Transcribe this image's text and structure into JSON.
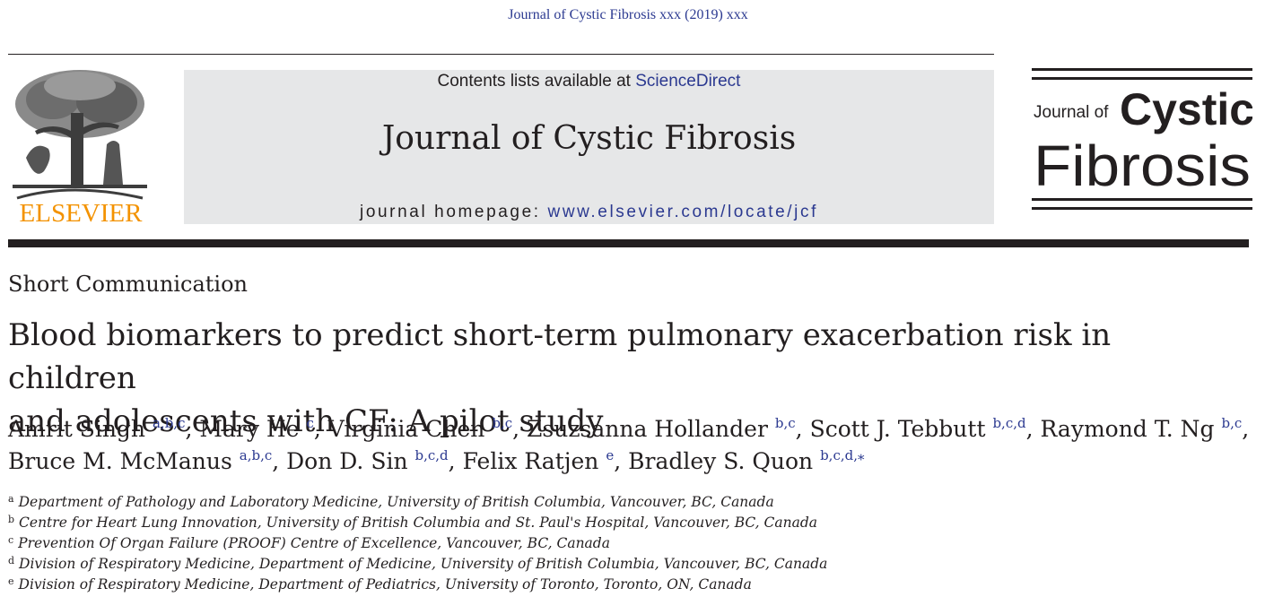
{
  "header": {
    "running_head": "Journal of Cystic Fibrosis xxx (2019) xxx",
    "contents_prefix": "Contents lists available at ",
    "contents_link": "ScienceDirect",
    "journal_title": "Journal of Cystic Fibrosis",
    "homepage_prefix": "journal homepage: ",
    "homepage_url": "www.elsevier.com/locate/jcf",
    "publisher_logo_text": "ELSEVIER",
    "journal_logo_small": "Journal of",
    "journal_logo_word1": "Cystic",
    "journal_logo_word2": "Fibrosis"
  },
  "article": {
    "type": "Short Communication",
    "title_line1": "Blood biomarkers to predict short-term pulmonary exacerbation risk in children",
    "title_line2": "and adolescents with CF: A pilot study"
  },
  "authors": [
    {
      "name": "Amrit Singh",
      "sup": "a,b,c",
      "sep": ", "
    },
    {
      "name": "Mary He",
      "sup": "c",
      "sep": ", "
    },
    {
      "name": "Virginia Chen",
      "sup": "b,c",
      "sep": ", "
    },
    {
      "name": "Zsuzsanna Hollander",
      "sup": "b,c",
      "sep": ", "
    },
    {
      "name": "Scott J. Tebbutt",
      "sup": "b,c,d",
      "sep": ", "
    },
    {
      "name": "Raymond T. Ng",
      "sup": "b,c",
      "sep": ","
    },
    {
      "name": "Bruce M. McManus",
      "sup": "a,b,c",
      "sep": ", "
    },
    {
      "name": "Don D. Sin",
      "sup": "b,c,d",
      "sep": ", "
    },
    {
      "name": "Felix Ratjen",
      "sup": "e",
      "sep": ", "
    },
    {
      "name": "Bradley S. Quon",
      "sup": "b,c,d,⁎",
      "sep": ""
    }
  ],
  "affiliations": [
    {
      "label": "a",
      "text": "Department of Pathology and Laboratory Medicine, University of British Columbia, Vancouver, BC, Canada"
    },
    {
      "label": "b",
      "text": "Centre for Heart Lung Innovation, University of British Columbia and St. Paul's Hospital, Vancouver, BC, Canada"
    },
    {
      "label": "c",
      "text": "Prevention Of Organ Failure (PROOF) Centre of Excellence, Vancouver, BC, Canada"
    },
    {
      "label": "d",
      "text": "Division of Respiratory Medicine, Department of Medicine, University of British Columbia, Vancouver, BC, Canada"
    },
    {
      "label": "e",
      "text": "Division of Respiratory Medicine, Department of Pediatrics, University of Toronto, Toronto, ON, Canada"
    }
  ],
  "colors": {
    "link": "#2b3990",
    "elsevier_orange": "#f39200",
    "banner_bg": "#e6e7e8",
    "text": "#231f20"
  }
}
